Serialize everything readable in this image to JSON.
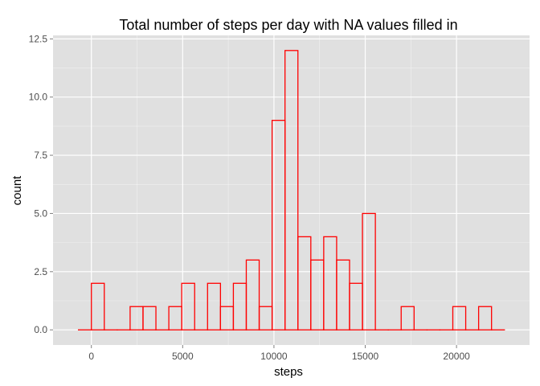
{
  "chart_data": {
    "type": "bar",
    "title": "Total number of steps per day with NA values filled in",
    "xlabel": "steps",
    "ylabel": "count",
    "bin_width": 707,
    "bar_color": "#ff0000",
    "panel_background": "#e0e0e0",
    "grid_color": "#ffffff",
    "grid": true,
    "xlim": [
      -2100,
      24000
    ],
    "ylim": [
      -0.65,
      12.65
    ],
    "x_ticks": [
      0,
      5000,
      10000,
      15000,
      20000
    ],
    "x_tick_labels": [
      "0",
      "5000",
      "10000",
      "15000",
      "20000"
    ],
    "y_ticks": [
      0,
      2.5,
      5,
      7.5,
      10,
      12.5
    ],
    "y_tick_labels": [
      "0.0",
      "2.5",
      "5.0",
      "7.5",
      "10.0",
      "12.5"
    ],
    "bins": [
      {
        "x": -354,
        "count": 0
      },
      {
        "x": 354,
        "count": 2
      },
      {
        "x": 1061,
        "count": 0
      },
      {
        "x": 1768,
        "count": 0
      },
      {
        "x": 2475,
        "count": 1
      },
      {
        "x": 3182,
        "count": 1
      },
      {
        "x": 3889,
        "count": 0
      },
      {
        "x": 4596,
        "count": 1
      },
      {
        "x": 5303,
        "count": 2
      },
      {
        "x": 6010,
        "count": 0
      },
      {
        "x": 6717,
        "count": 2
      },
      {
        "x": 7424,
        "count": 1
      },
      {
        "x": 8131,
        "count": 2
      },
      {
        "x": 8838,
        "count": 3
      },
      {
        "x": 9545,
        "count": 1
      },
      {
        "x": 10252,
        "count": 9
      },
      {
        "x": 10959,
        "count": 12
      },
      {
        "x": 11666,
        "count": 4
      },
      {
        "x": 12373,
        "count": 3
      },
      {
        "x": 13080,
        "count": 4
      },
      {
        "x": 13787,
        "count": 3
      },
      {
        "x": 14494,
        "count": 2
      },
      {
        "x": 15201,
        "count": 5
      },
      {
        "x": 15908,
        "count": 0
      },
      {
        "x": 16615,
        "count": 0
      },
      {
        "x": 17322,
        "count": 1
      },
      {
        "x": 18029,
        "count": 0
      },
      {
        "x": 18736,
        "count": 0
      },
      {
        "x": 19443,
        "count": 0
      },
      {
        "x": 20150,
        "count": 1
      },
      {
        "x": 20857,
        "count": 0
      },
      {
        "x": 21564,
        "count": 1
      },
      {
        "x": 22271,
        "count": 0
      }
    ]
  }
}
